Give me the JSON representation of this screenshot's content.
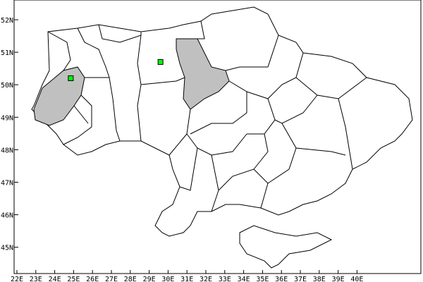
{
  "map": {
    "x_ticks": [
      "22E",
      "23E",
      "24E",
      "25E",
      "26E",
      "27E",
      "28E",
      "29E",
      "30E",
      "31E",
      "32E",
      "33E",
      "34E",
      "35E",
      "36E",
      "37E",
      "38E",
      "39E",
      "40E"
    ],
    "y_ticks": [
      "52N",
      "51N",
      "50N",
      "49N",
      "48N",
      "47N",
      "46N",
      "45N"
    ],
    "colors": {
      "highlight_region": "#c0c0c0",
      "marker": "#00ff00",
      "border": "#000000",
      "land": "#ffffff"
    },
    "markers": [
      {
        "lon": 24.85,
        "lat": 50.2
      },
      {
        "lon": 29.6,
        "lat": 50.7
      }
    ]
  }
}
